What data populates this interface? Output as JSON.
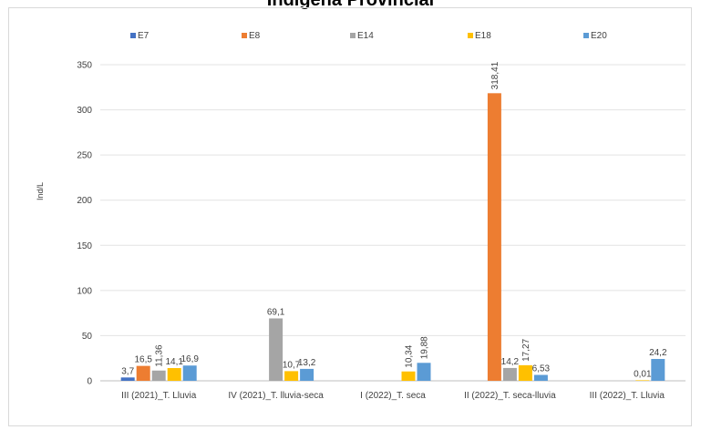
{
  "page_title": "Indígena Provincial",
  "chart_data": {
    "type": "bar",
    "title": "Indígena Provincial",
    "xlabel": "",
    "ylabel": "Ind/L",
    "ylim": [
      0,
      350
    ],
    "yticks": [
      0,
      50,
      100,
      150,
      200,
      250,
      300,
      350
    ],
    "grid": true,
    "legend_position": "top",
    "categories": [
      "III (2021)_T. Lluvia",
      "IV (2021)_T. lluvia-seca",
      "I (2022)_T. seca",
      "II (2022)_T. seca-lluvia",
      "III (2022)_T. Lluvia"
    ],
    "series": [
      {
        "name": "E7",
        "color": "#4472c4",
        "values": [
          3.7,
          null,
          null,
          null,
          null
        ],
        "labels": [
          "3,7",
          null,
          null,
          null,
          null
        ]
      },
      {
        "name": "E8",
        "color": "#ed7d31",
        "values": [
          16.5,
          null,
          null,
          318.41,
          null
        ],
        "labels": [
          "16,5",
          null,
          null,
          "318,41",
          null
        ]
      },
      {
        "name": "E14",
        "color": "#a5a5a5",
        "values": [
          11.36,
          69.1,
          null,
          14.2,
          null
        ],
        "labels": [
          "11,36",
          "69,1",
          null,
          "14,2",
          null
        ]
      },
      {
        "name": "E18",
        "color": "#ffc000",
        "values": [
          14.1,
          10.7,
          10.34,
          17.27,
          0.01
        ],
        "labels": [
          "14,1",
          "10,7",
          "10,34",
          "17,27",
          "0,01"
        ]
      },
      {
        "name": "E20",
        "color": "#5b9bd5",
        "values": [
          16.9,
          13.2,
          19.88,
          6.53,
          24.2
        ],
        "labels": [
          "16,9",
          "13,2",
          "19,88",
          "6,53",
          "24,2"
        ]
      }
    ]
  }
}
